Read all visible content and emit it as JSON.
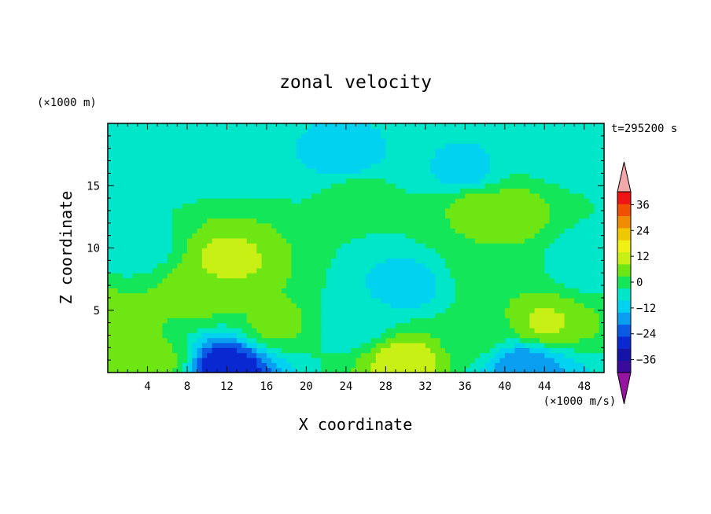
{
  "chart_data": {
    "type": "heatmap",
    "title": "zonal velocity",
    "xlabel": "X coordinate",
    "ylabel": "Z coordinate",
    "x_unit": "(×1000 m/s)",
    "y_unit": "(×1000 m)",
    "time_label": "t=295200 s",
    "xlim": [
      0,
      50
    ],
    "ylim": [
      0,
      20
    ],
    "x_ticks": [
      "4",
      "8",
      "12",
      "16",
      "20",
      "24",
      "28",
      "32",
      "36",
      "40",
      "44",
      "48"
    ],
    "y_ticks": [
      "5",
      "10",
      "15"
    ],
    "colorbar": {
      "min": -42,
      "max": 42,
      "step": 6,
      "tick_labels": [
        "36",
        "24",
        "12",
        "0",
        "−12",
        "−24",
        "−36"
      ],
      "extend": "both",
      "colors": [
        "#3a0a9c",
        "#1414a6",
        "#0a28d2",
        "#0a5ae6",
        "#0a9ef0",
        "#00d2f0",
        "#00e6c8",
        "#14e65a",
        "#6ee614",
        "#c8f014",
        "#f0f014",
        "#f0c800",
        "#f08c00",
        "#f05000",
        "#f01414"
      ],
      "under_color": "#9614a0",
      "over_color": "#f0a8a8"
    },
    "field_features": [
      {
        "x": 0,
        "z": 18,
        "value": -4
      },
      {
        "x": 10,
        "z": 18,
        "value": -6
      },
      {
        "x": 24,
        "z": 17,
        "value": -9
      },
      {
        "x": 36,
        "z": 16,
        "value": -9
      },
      {
        "x": 46,
        "z": 18,
        "value": -6
      },
      {
        "x": 25,
        "z": 14.5,
        "value": 3
      },
      {
        "x": 37,
        "z": 13.5,
        "value": 8
      },
      {
        "x": 40,
        "z": 12.8,
        "value": 11
      },
      {
        "x": 3,
        "z": 10,
        "value": -4
      },
      {
        "x": 12,
        "z": 9,
        "value": 14
      },
      {
        "x": 9,
        "z": 6.5,
        "value": 9
      },
      {
        "x": 17,
        "z": 4,
        "value": 8
      },
      {
        "x": 30,
        "z": 7,
        "value": -9
      },
      {
        "x": 25,
        "z": 4,
        "value": -5
      },
      {
        "x": 39,
        "z": 8,
        "value": 5
      },
      {
        "x": 44,
        "z": 4,
        "value": 13
      },
      {
        "x": 48,
        "z": 9,
        "value": -5
      },
      {
        "x": 12,
        "z": 0.5,
        "value": -30
      },
      {
        "x": 30,
        "z": 1,
        "value": 16
      },
      {
        "x": 5,
        "z": 1,
        "value": 8
      },
      {
        "x": 42,
        "z": 0.5,
        "value": -18
      },
      {
        "x": 37,
        "z": 3,
        "value": 3
      },
      {
        "x": 0,
        "z": 4,
        "value": 10
      }
    ]
  }
}
